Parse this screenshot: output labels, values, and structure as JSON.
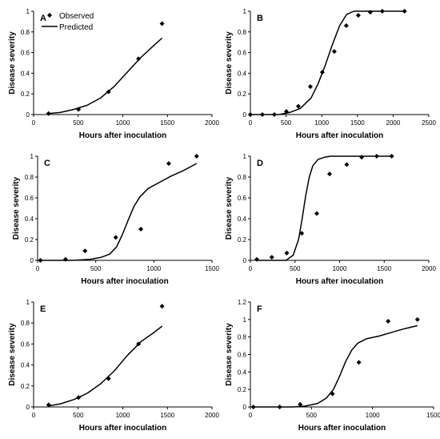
{
  "chart_data": [
    {
      "type": "scatter",
      "panel_label": "A",
      "xlabel": "Hours after inoculation",
      "ylabel": "Disease severity",
      "xlim": [
        0,
        2000
      ],
      "ylim": [
        0,
        1
      ],
      "xticks": [
        "0",
        "500",
        "1000",
        "1500",
        "2000"
      ],
      "yticks": [
        "0",
        "0.2",
        "0.4",
        "0.6",
        "0.8",
        "1"
      ],
      "legend": {
        "position": "top-left",
        "entries": [
          "Observed",
          "Predicted"
        ]
      },
      "series": [
        {
          "name": "Observed",
          "style": "diamond-markers",
          "x": [
            168,
            504,
            840,
            1176,
            1440
          ],
          "y": [
            0.01,
            0.05,
            0.22,
            0.54,
            0.88
          ]
        },
        {
          "name": "Predicted",
          "style": "line",
          "x": [
            168,
            300,
            450,
            600,
            750,
            900,
            1050,
            1200,
            1350,
            1440
          ],
          "y": [
            0.01,
            0.02,
            0.05,
            0.09,
            0.16,
            0.27,
            0.41,
            0.55,
            0.67,
            0.74
          ]
        }
      ]
    },
    {
      "type": "scatter",
      "panel_label": "B",
      "xlabel": "Hours after inoculation",
      "ylabel": "Disease severity",
      "xlim": [
        0,
        2500
      ],
      "ylim": [
        0,
        1
      ],
      "xticks": [
        "0",
        "500",
        "1000",
        "1500",
        "2000",
        "2500"
      ],
      "yticks": [
        "0",
        "0.2",
        "0.4",
        "0.6",
        "0.8",
        "1"
      ],
      "series": [
        {
          "name": "Observed",
          "style": "diamond-markers",
          "x": [
            0,
            168,
            336,
            504,
            672,
            840,
            1008,
            1176,
            1344,
            1512,
            1680,
            1848,
            2160
          ],
          "y": [
            0,
            0,
            0,
            0.03,
            0.08,
            0.27,
            0.41,
            0.61,
            0.86,
            0.96,
            0.99,
            1.0,
            1.0
          ]
        },
        {
          "name": "Predicted",
          "style": "line",
          "x": [
            0,
            400,
            550,
            700,
            850,
            950,
            1050,
            1150,
            1250,
            1350,
            1450,
            1600,
            1800,
            2160
          ],
          "y": [
            0,
            0,
            0.02,
            0.06,
            0.16,
            0.3,
            0.48,
            0.68,
            0.86,
            0.97,
            1.0,
            1.0,
            1.0,
            1.0
          ]
        }
      ]
    },
    {
      "type": "scatter",
      "panel_label": "C",
      "xlabel": "Hours after inoculation",
      "ylabel": "Disease severity",
      "xlim": [
        0,
        1500
      ],
      "ylim": [
        0,
        1
      ],
      "xticks": [
        "0",
        "500",
        "1000",
        "1500"
      ],
      "yticks": [
        "0",
        "0.2",
        "0.4",
        "0.6",
        "0.8",
        "1"
      ],
      "series": [
        {
          "name": "Observed",
          "style": "diamond-markers",
          "x": [
            24,
            240,
            408,
            672,
            888,
            1128,
            1368
          ],
          "y": [
            0,
            0.01,
            0.09,
            0.22,
            0.3,
            0.93,
            1.0
          ]
        },
        {
          "name": "Predicted",
          "style": "line",
          "x": [
            24,
            300,
            450,
            550,
            620,
            680,
            730,
            780,
            830,
            880,
            950,
            1050,
            1150,
            1250,
            1368
          ],
          "y": [
            0,
            0,
            0.01,
            0.03,
            0.06,
            0.13,
            0.25,
            0.39,
            0.52,
            0.61,
            0.69,
            0.75,
            0.81,
            0.86,
            0.93
          ]
        }
      ]
    },
    {
      "type": "scatter",
      "panel_label": "D",
      "xlabel": "Hours after inoculation",
      "ylabel": "Disease severity",
      "xlim": [
        0,
        2000
      ],
      "ylim": [
        0,
        1
      ],
      "xticks": [
        "0",
        "500",
        "1000",
        "1500",
        "2000"
      ],
      "yticks": [
        "0",
        "0.2",
        "0.4",
        "0.6",
        "0.8",
        "1"
      ],
      "series": [
        {
          "name": "Observed",
          "style": "diamond-markers",
          "x": [
            72,
            240,
            408,
            576,
            744,
            888,
            1080,
            1248,
            1416,
            1584
          ],
          "y": [
            0.01,
            0.03,
            0.07,
            0.26,
            0.45,
            0.83,
            0.92,
            0.99,
            1.0,
            1.0
          ]
        },
        {
          "name": "Predicted",
          "style": "line",
          "x": [
            72,
            400,
            480,
            540,
            580,
            620,
            660,
            700,
            760,
            830,
            900,
            1000,
            1200,
            1584
          ],
          "y": [
            0,
            0,
            0.05,
            0.2,
            0.4,
            0.62,
            0.8,
            0.91,
            0.97,
            0.99,
            1.0,
            1.0,
            1.0,
            1.0
          ]
        }
      ]
    },
    {
      "type": "scatter",
      "panel_label": "E",
      "xlabel": "Hours after inoculation",
      "ylabel": "Disease severity",
      "xlim": [
        0,
        2000
      ],
      "ylim": [
        0,
        1
      ],
      "xticks": [
        "0",
        "500",
        "1000",
        "1500",
        "2000"
      ],
      "yticks": [
        "0",
        "0.2",
        "0.4",
        "0.6",
        "0.8",
        "1"
      ],
      "series": [
        {
          "name": "Observed",
          "style": "diamond-markers",
          "x": [
            168,
            504,
            840,
            1176,
            1440
          ],
          "y": [
            0.02,
            0.09,
            0.27,
            0.6,
            0.96
          ]
        },
        {
          "name": "Predicted",
          "style": "line",
          "x": [
            168,
            300,
            450,
            600,
            750,
            900,
            1050,
            1200,
            1350,
            1440
          ],
          "y": [
            0.01,
            0.03,
            0.07,
            0.13,
            0.22,
            0.34,
            0.49,
            0.62,
            0.71,
            0.77
          ]
        }
      ]
    },
    {
      "type": "scatter",
      "panel_label": "F",
      "xlabel": "Hours after inoculation",
      "ylabel": "Disease severity",
      "xlim": [
        0,
        1500
      ],
      "ylim": [
        0,
        1.2
      ],
      "xticks": [
        "0",
        "500",
        "1000",
        "1500"
      ],
      "yticks": [
        "0",
        "0.2",
        "0.4",
        "0.6",
        "0.8",
        "1",
        "1.2"
      ],
      "series": [
        {
          "name": "Observed",
          "style": "diamond-markers",
          "x": [
            24,
            240,
            408,
            672,
            888,
            1128,
            1368
          ],
          "y": [
            0,
            0,
            0.03,
            0.15,
            0.51,
            0.98,
            1.0
          ]
        },
        {
          "name": "Predicted",
          "style": "line",
          "x": [
            24,
            350,
            450,
            550,
            620,
            680,
            730,
            780,
            830,
            880,
            950,
            1050,
            1150,
            1250,
            1368
          ],
          "y": [
            0,
            0,
            0.01,
            0.04,
            0.1,
            0.2,
            0.35,
            0.52,
            0.65,
            0.73,
            0.78,
            0.81,
            0.85,
            0.89,
            0.93
          ]
        }
      ]
    }
  ]
}
